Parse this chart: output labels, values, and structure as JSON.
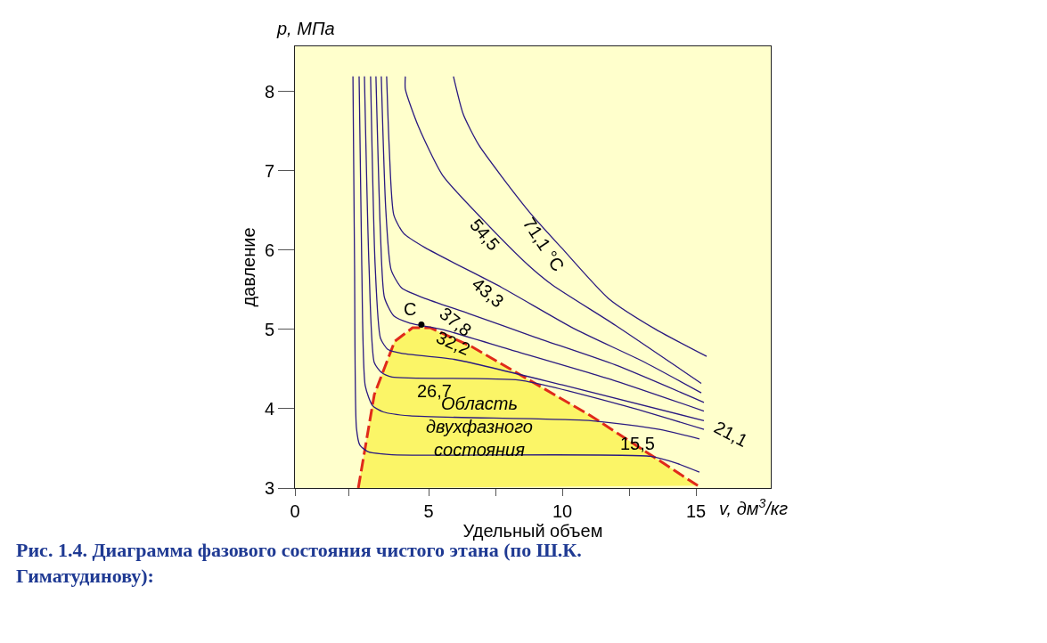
{
  "chart_data": {
    "type": "line",
    "title": "Рис. 1.4. Диаграмма фазового состояния чистого этана (по Ш.К. Гиматудинову):",
    "xlabel": "Удельный объем",
    "ylabel": "давление",
    "annotations": [
      "p, МПа",
      "v, дм$^{3}$/кг",
      "Область\nдвухфазного\nсостояния"
    ],
    "xlim": [
      0,
      17.8
    ],
    "ylim": [
      3,
      8.57
    ],
    "xticks": [
      0,
      {
        "value": 2,
        "label": null
      },
      5,
      {
        "value": 7.5,
        "label": null
      },
      10,
      {
        "value": 12.5,
        "label": null
      },
      15
    ],
    "yticks": [
      3,
      4,
      5,
      6,
      7,
      8
    ],
    "grid": false,
    "marker": "none",
    "series": [
      {
        "name": "15,5",
        "color": "#2a1a80",
        "x": [
          2.17,
          2.23,
          2.3,
          2.43,
          2.73,
          3.63,
          13.3,
          14.3,
          15.13
        ],
        "values": [
          8.19,
          5.81,
          3.76,
          3.54,
          3.46,
          3.42,
          3.4,
          3.31,
          3.2
        ]
      },
      {
        "name": "21,1",
        "color": "#2a1a80",
        "x": [
          2.4,
          2.5,
          2.63,
          2.9,
          3.3,
          4.3,
          11.07,
          13.63,
          15.13
        ],
        "values": [
          8.19,
          5.81,
          4.29,
          4.04,
          3.96,
          3.91,
          3.85,
          3.74,
          3.62
        ]
      },
      {
        "name": "26,7",
        "color": "#2a1a80",
        "x": [
          2.6,
          2.77,
          2.97,
          3.23,
          3.63,
          8.4,
          12.3,
          15.3
        ],
        "values": [
          8.19,
          5.81,
          4.58,
          4.46,
          4.4,
          4.36,
          4.04,
          3.74
        ]
      },
      {
        "color": "#2a1a80",
        "x": [
          2.83,
          3.0,
          3.2,
          3.47,
          3.97,
          6.0,
          10.0,
          15.3
        ],
        "values": [
          8.19,
          5.81,
          4.89,
          4.75,
          4.7,
          4.62,
          4.3,
          3.85
        ]
      },
      {
        "name": "32,2",
        "color": "#2a1a80",
        "x": [
          3.03,
          3.2,
          3.35,
          3.7,
          4.3,
          5.5,
          8.0,
          12.0,
          15.3
        ],
        "values": [
          8.19,
          6.2,
          5.4,
          5.17,
          5.08,
          5.0,
          4.75,
          4.35,
          3.97
        ]
      },
      {
        "name": "37,8",
        "color": "#2a1a80",
        "x": [
          3.23,
          3.4,
          3.6,
          4.0,
          4.8,
          6.5,
          9.0,
          12.0,
          15.3
        ],
        "values": [
          8.19,
          6.5,
          5.75,
          5.52,
          5.4,
          5.2,
          4.9,
          4.55,
          4.08
        ]
      },
      {
        "name": "43,3",
        "color": "#2a1a80",
        "x": [
          3.43,
          3.53,
          3.7,
          4.07,
          4.87,
          7.73,
          10.5,
          13.0,
          15.2
        ],
        "values": [
          8.19,
          7.27,
          6.44,
          6.21,
          6.03,
          5.53,
          5.0,
          4.6,
          4.2
        ]
      },
      {
        "name": "54,5",
        "color": "#2a1a80",
        "x": [
          4.13,
          4.13,
          4.63,
          5.53,
          7.07,
          8.73,
          9.63,
          12.0,
          15.2
        ],
        "values": [
          8.19,
          8.03,
          7.55,
          6.94,
          6.37,
          5.81,
          5.56,
          5.05,
          4.32
        ]
      },
      {
        "name": "71,1 °C",
        "color": "#2a1a80",
        "x": [
          5.93,
          6.3,
          6.87,
          7.73,
          8.87,
          9.97,
          11.73,
          13.5,
          15.4
        ],
        "values": [
          8.19,
          7.71,
          7.33,
          6.93,
          6.44,
          6.03,
          5.39,
          5.0,
          4.66
        ]
      },
      {
        "type": "area",
        "line_style": "dashed",
        "color": "#e02a1a",
        "colors": [
          "#fbf567",
          "#fbf567",
          "#fbf567",
          "#fbf567",
          "#fbf567",
          "#fbf567",
          "#fbf567",
          "#fbf567"
        ],
        "x": [
          2.37,
          2.97,
          3.73,
          4.4,
          5.07,
          6.63,
          11.07,
          15.07
        ],
        "values": [
          3.0,
          4.18,
          4.85,
          5.02,
          5.02,
          4.78,
          3.91,
          3.03
        ]
      },
      {
        "type": "scatter",
        "name": "C",
        "marker": "circle",
        "color": "#000000",
        "x": [
          4.73
        ],
        "values": [
          5.06
        ]
      }
    ]
  }
}
